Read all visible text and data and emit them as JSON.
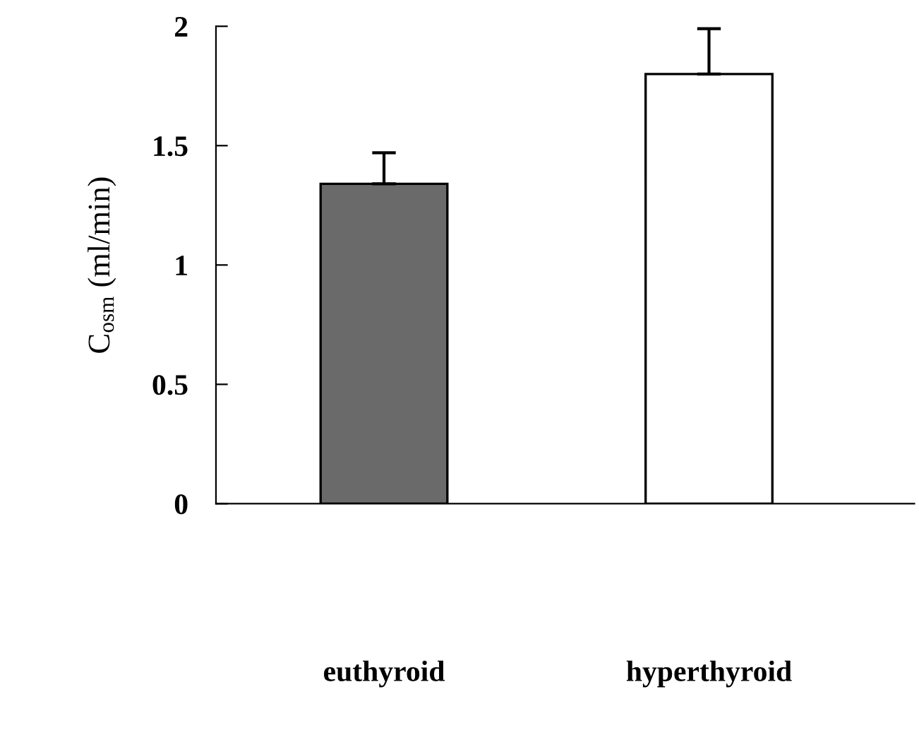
{
  "chart_data": {
    "type": "bar",
    "ylabel": "C$_{osm}$ (ml/min)",
    "categories": [
      "euthyroid",
      "hyperthyroid"
    ],
    "values": [
      1.34,
      1.8
    ],
    "errors": [
      [
        1.34,
        1.47
      ],
      [
        1.8,
        1.99
      ]
    ],
    "colors": [
      "#6a6a6a",
      "#ffffff"
    ],
    "ylim": [
      0,
      2
    ],
    "yticks": [
      0,
      0.5,
      1,
      1.5,
      2
    ],
    "grid": false,
    "legend": false
  }
}
